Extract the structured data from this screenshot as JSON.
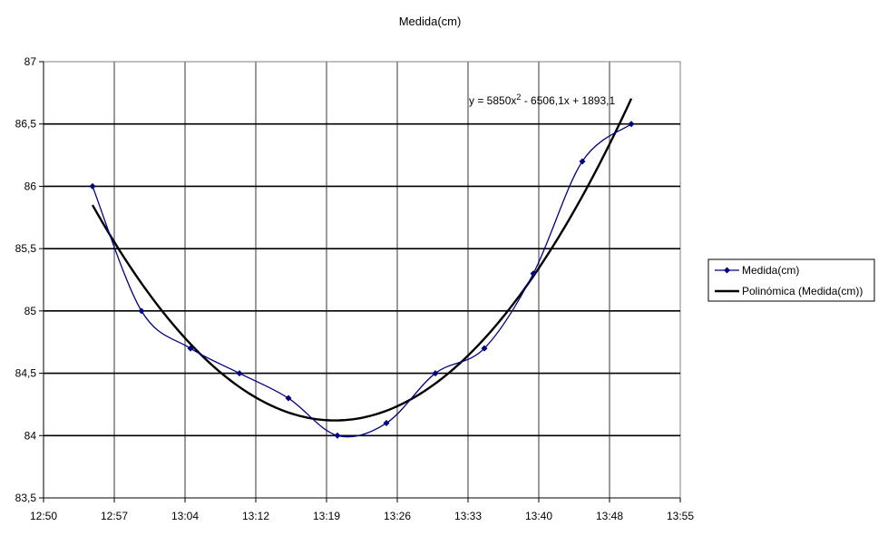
{
  "chart_data": {
    "type": "line",
    "title": "Medida(cm)",
    "xlabel": "",
    "ylabel": "",
    "xlim": [
      "12:50",
      "13:55"
    ],
    "ylim": [
      83.5,
      87
    ],
    "x_ticks": [
      "12:50",
      "12:57",
      "13:04",
      "13:12",
      "13:19",
      "13:26",
      "13:33",
      "13:40",
      "13:48",
      "13:55"
    ],
    "y_ticks": [
      "83,5",
      "84",
      "84,5",
      "85",
      "85,5",
      "86",
      "86,5",
      "87"
    ],
    "y_tick_values": [
      83.5,
      84,
      84.5,
      85,
      85.5,
      86,
      86.5,
      87
    ],
    "grid": true,
    "legend_position": "right",
    "series": [
      {
        "name": "Medida(cm)",
        "color": "#000080",
        "marker": "diamond",
        "smoothed": true,
        "x": [
          "12:55",
          "13:00",
          "13:05",
          "13:10",
          "13:15",
          "13:20",
          "13:25",
          "13:30",
          "13:35",
          "13:40",
          "13:45",
          "13:50"
        ],
        "values": [
          86.0,
          85.0,
          84.7,
          84.5,
          84.3,
          84.0,
          84.1,
          84.5,
          84.7,
          85.3,
          86.2,
          86.5
        ]
      }
    ],
    "trendline": {
      "name": "Polinómica (Medida(cm))",
      "type": "polynomial",
      "order": 2,
      "color": "#000000",
      "equation": "y = 5850x² - 6506,1x + 1893,1",
      "x_range": [
        "12:55",
        "13:50"
      ]
    }
  }
}
